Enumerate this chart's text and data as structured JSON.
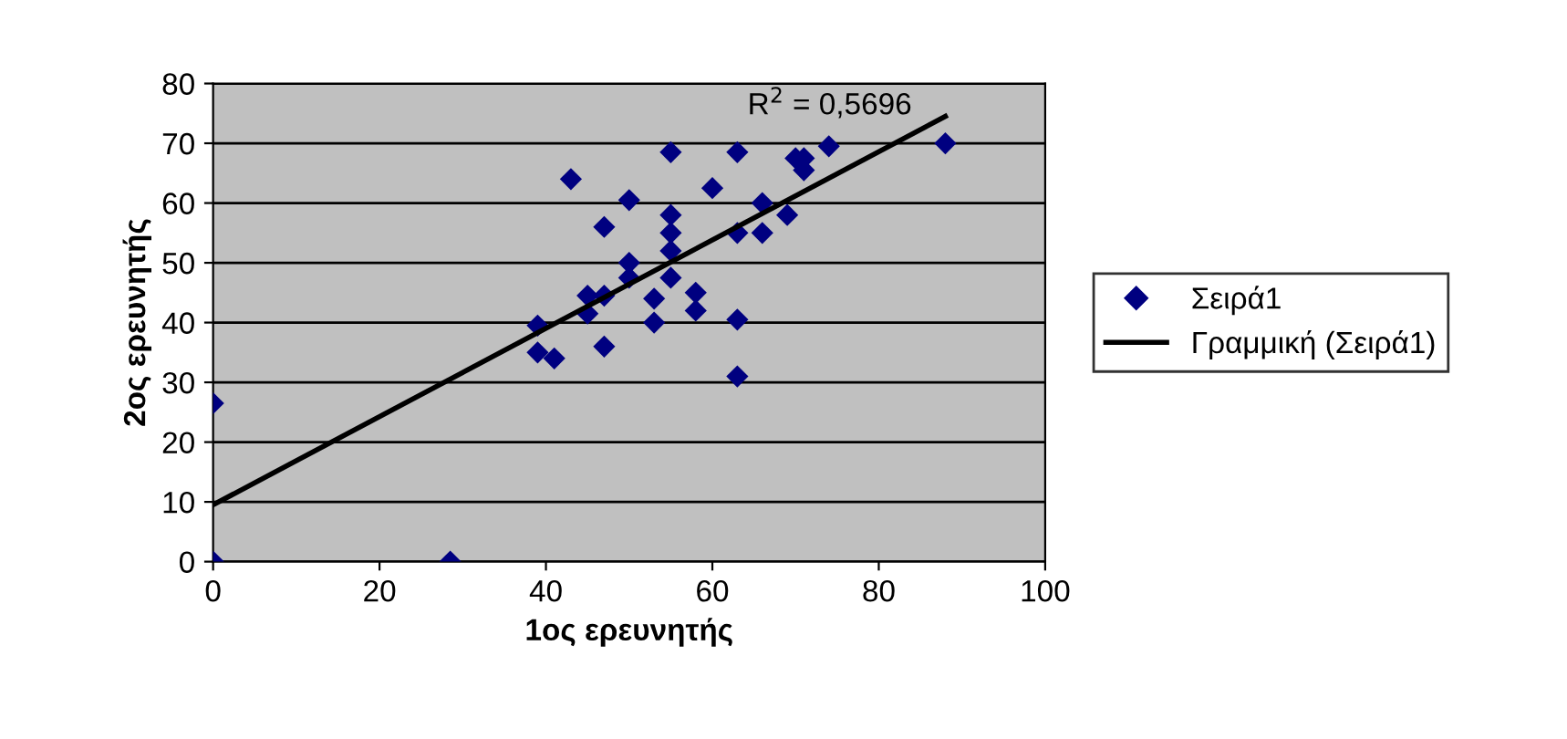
{
  "chart_data": {
    "type": "scatter",
    "xlabel": "1ος ερευνητής",
    "ylabel": "2ος ερευνητής",
    "xlim": [
      0,
      100
    ],
    "ylim": [
      0,
      80
    ],
    "xticks": [
      0,
      20,
      40,
      60,
      80,
      100
    ],
    "yticks": [
      0,
      10,
      20,
      30,
      40,
      50,
      60,
      70,
      80
    ],
    "grid": "y",
    "legend": "right",
    "annotations": [
      "R$^{2}$ = 0,5696"
    ],
    "series": [
      {
        "name": "Σειρά1",
        "marker": "diamond",
        "color": "#000080",
        "x": [
          0,
          0,
          28.5,
          39,
          39,
          41,
          43,
          45,
          45,
          47,
          47,
          47,
          50,
          50,
          50,
          53,
          53,
          55,
          55,
          55,
          55,
          55,
          58,
          58,
          60,
          63,
          63,
          63,
          63,
          66,
          66,
          69,
          70,
          71,
          71,
          74,
          88
        ],
        "values": [
          0,
          26.5,
          0,
          39.5,
          35,
          34,
          64,
          44.5,
          41.5,
          56,
          44.5,
          36,
          60.5,
          50,
          47.5,
          44,
          40,
          68.5,
          58,
          55,
          52,
          47.5,
          45,
          42,
          62.5,
          68.5,
          55,
          40.5,
          31,
          60,
          55,
          58,
          67.5,
          65.5,
          67.5,
          69.5,
          70
        ]
      },
      {
        "name": "Γραμμική (Σειρά1)",
        "type": "line",
        "marker": "none",
        "color": "#000000",
        "x": [
          0,
          88
        ],
        "values": [
          9.5,
          74.5
        ]
      }
    ]
  }
}
